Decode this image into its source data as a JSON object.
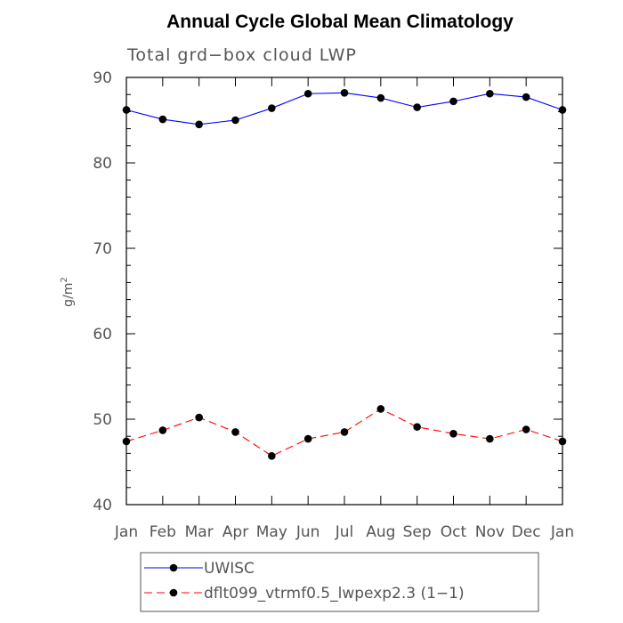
{
  "chart_data": {
    "type": "line",
    "title": "Annual Cycle Global Mean Climatology",
    "subtitle": "Total grd−box cloud LWP",
    "ylabel": "g/m",
    "ylabel_sup": "2",
    "ylim": [
      40,
      90
    ],
    "yticks": [
      40,
      50,
      60,
      70,
      80,
      90
    ],
    "categories": [
      "Jan",
      "Feb",
      "Mar",
      "Apr",
      "May",
      "Jun",
      "Jul",
      "Aug",
      "Sep",
      "Oct",
      "Nov",
      "Dec",
      "Jan"
    ],
    "grid": false,
    "legend_position": "bottom",
    "series": [
      {
        "name": "UWISC",
        "color": "#0000ff",
        "dash": "solid",
        "values": [
          86.2,
          85.1,
          84.5,
          85.0,
          86.4,
          88.1,
          88.2,
          87.6,
          86.5,
          87.2,
          88.1,
          87.7,
          86.2
        ]
      },
      {
        "name": "dflt099_vtrmf0.5_lwpexp2.3 (1−1)",
        "color": "#ff0000",
        "dash": "dashed",
        "values": [
          47.4,
          48.7,
          50.2,
          48.5,
          45.7,
          47.7,
          48.5,
          51.2,
          49.1,
          48.3,
          47.7,
          48.8,
          47.4
        ]
      }
    ]
  }
}
